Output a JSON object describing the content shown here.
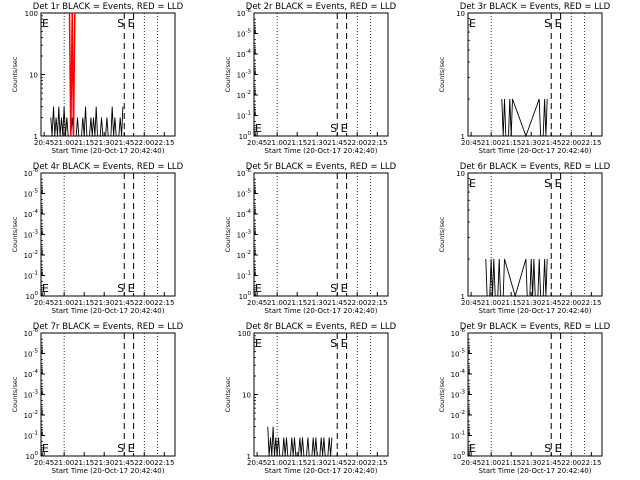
{
  "figure": {
    "x_ticks": [
      "20:45",
      "21:00",
      "21:15",
      "21:30",
      "21:45",
      "22:00",
      "22:15"
    ],
    "xlabel": "Start Time (20-Oct-17 20:42:40)",
    "ylabel": "Counts/sec",
    "marker_start": "S",
    "marker_end": "E"
  },
  "chart_data": [
    {
      "type": "line",
      "title": "Det 1r BLACK = Events, RED = LLD",
      "y_scale": "log",
      "ylim": [
        1,
        100
      ],
      "y_ticks": [
        "1",
        "10",
        "100"
      ],
      "x_range": [
        "20:42:40",
        "22:23"
      ],
      "series": [
        {
          "name": "Events",
          "color": "#000000",
          "x": [
            "20:50",
            "20:52",
            "20:54",
            "20:56",
            "20:58",
            "21:00",
            "21:02",
            "21:04",
            "21:06",
            "21:08",
            "21:10",
            "21:12",
            "21:14",
            "21:16",
            "21:18",
            "21:20",
            "21:22",
            "21:24",
            "21:26",
            "21:28",
            "21:30",
            "21:32",
            "21:34",
            "21:36",
            "21:38",
            "21:40",
            "21:42",
            "21:44"
          ],
          "values": [
            2,
            3,
            2,
            3,
            2,
            3,
            2,
            1,
            2,
            1,
            2,
            1,
            2,
            3,
            1,
            2,
            2,
            3,
            1,
            2,
            1,
            2,
            1,
            3,
            2,
            1,
            2,
            3
          ]
        },
        {
          "name": "LLD",
          "color": "#ff0000",
          "x": [
            "21:04",
            "21:06",
            "21:08"
          ],
          "values": [
            100,
            100,
            100
          ]
        }
      ],
      "markers": {
        "S": "21:45",
        "E": "21:52"
      },
      "dotted_lines": [
        "21:00",
        "22:00",
        "22:10"
      ]
    },
    {
      "type": "line",
      "title": "Det 2r BLACK = Events, RED = LLD",
      "y_scale": "log",
      "ylim": [
        1,
        1e-06
      ],
      "y_ticks": [
        "10^0",
        "10^-1",
        "10^-2",
        "10^-3",
        "10^-4",
        "10^-5",
        "10^-6"
      ],
      "series": [],
      "markers": {
        "S": "21:45",
        "E": "21:52"
      },
      "dotted_lines": [
        "21:00",
        "22:00",
        "22:10"
      ]
    },
    {
      "type": "line",
      "title": "Det 3r BLACK = Events, RED = LLD",
      "y_scale": "log",
      "ylim": [
        1,
        10
      ],
      "y_ticks": [
        "1",
        "10"
      ],
      "series": [
        {
          "name": "Events",
          "color": "#000000",
          "x": [
            "21:08",
            "21:10",
            "21:12",
            "21:14",
            "21:16",
            "21:36",
            "21:38",
            "21:40",
            "21:42"
          ],
          "values": [
            2,
            2,
            1,
            2,
            2,
            2,
            1,
            2,
            2
          ]
        }
      ],
      "markers": {
        "S": "21:45",
        "E": "21:52"
      },
      "dotted_lines": [
        "21:00",
        "22:00",
        "22:10"
      ]
    },
    {
      "type": "line",
      "title": "Det 4r BLACK = Events, RED = LLD",
      "y_scale": "log",
      "ylim": [
        1,
        1e-06
      ],
      "y_ticks": [
        "10^0",
        "10^-1",
        "10^-2",
        "10^-3",
        "10^-4",
        "10^-5",
        "10^-6"
      ],
      "series": [],
      "markers": {
        "S": "21:45",
        "E": "21:52"
      },
      "dotted_lines": [
        "21:00",
        "22:00",
        "22:10"
      ]
    },
    {
      "type": "line",
      "title": "Det 5r BLACK = Events, RED = LLD",
      "y_scale": "log",
      "ylim": [
        1,
        1e-06
      ],
      "y_ticks": [
        "10^0",
        "10^-1",
        "10^-2",
        "10^-3",
        "10^-4",
        "10^-5",
        "10^-6"
      ],
      "series": [],
      "markers": {
        "S": "21:45",
        "E": "21:52"
      },
      "dotted_lines": [
        "21:00",
        "22:00",
        "22:10"
      ]
    },
    {
      "type": "line",
      "title": "Det 6r BLACK = Events, RED = LLD",
      "y_scale": "log",
      "ylim": [
        1,
        10
      ],
      "y_ticks": [
        "1",
        "10"
      ],
      "series": [
        {
          "name": "Events",
          "color": "#000000",
          "x": [
            "20:56",
            "20:58",
            "21:00",
            "21:02",
            "21:04",
            "21:06",
            "21:08",
            "21:10",
            "21:26",
            "21:28",
            "21:30",
            "21:32",
            "21:34",
            "21:36",
            "21:38",
            "21:40",
            "21:42"
          ],
          "values": [
            2,
            1,
            2,
            2,
            1,
            2,
            1,
            2,
            2,
            1,
            2,
            2,
            1,
            2,
            1,
            2,
            2
          ]
        }
      ],
      "markers": {
        "S": "21:45",
        "E": "21:52"
      },
      "dotted_lines": [
        "21:00",
        "22:00",
        "22:10"
      ]
    },
    {
      "type": "line",
      "title": "Det 7r BLACK = Events, RED = LLD",
      "y_scale": "log",
      "ylim": [
        1,
        1e-06
      ],
      "y_ticks": [
        "10^0",
        "10^-1",
        "10^-2",
        "10^-3",
        "10^-4",
        "10^-5",
        "10^-6"
      ],
      "series": [],
      "markers": {
        "S": "21:45",
        "E": "21:52"
      },
      "dotted_lines": [
        "21:00",
        "22:00",
        "22:10"
      ]
    },
    {
      "type": "line",
      "title": "Det 8r BLACK = Events, RED = LLD",
      "y_scale": "log",
      "ylim": [
        1,
        100
      ],
      "y_ticks": [
        "1",
        "10",
        "100"
      ],
      "series": [
        {
          "name": "Events",
          "color": "#000000",
          "x": [
            "20:53",
            "20:55",
            "20:57",
            "20:59",
            "21:01",
            "21:03",
            "21:05",
            "21:07",
            "21:09",
            "21:11",
            "21:13",
            "21:15",
            "21:17",
            "21:19",
            "21:21",
            "21:23",
            "21:25",
            "21:27",
            "21:29",
            "21:31",
            "21:33",
            "21:35",
            "21:37",
            "21:39",
            "21:41"
          ],
          "values": [
            3,
            2,
            3,
            2,
            2,
            1,
            2,
            2,
            1,
            2,
            2,
            1,
            2,
            2,
            1,
            2,
            1,
            2,
            2,
            1,
            2,
            2,
            1,
            2,
            2
          ]
        }
      ],
      "markers": {
        "S": "21:45",
        "E": "21:52"
      },
      "dotted_lines": [
        "21:00",
        "22:00",
        "22:10"
      ]
    },
    {
      "type": "line",
      "title": "Det 9r BLACK = Events, RED = LLD",
      "y_scale": "log",
      "ylim": [
        1,
        1e-06
      ],
      "y_ticks": [
        "10^0",
        "10^-1",
        "10^-2",
        "10^-3",
        "10^-4",
        "10^-5",
        "10^-6"
      ],
      "series": [],
      "markers": {
        "S": "21:45",
        "E": "21:52"
      },
      "dotted_lines": [
        "21:00",
        "22:00",
        "22:10"
      ]
    }
  ]
}
